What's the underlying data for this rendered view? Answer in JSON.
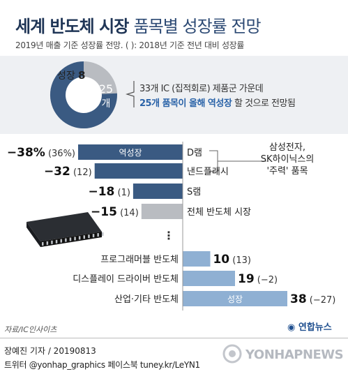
{
  "header": {
    "title_bold": "세계 반도체 시장",
    "title_light": "품목별 성장률 전망",
    "subtitle": "2019년 매출 기준 성장률 전망. (   ): 2018년 기준 전년 대비 성장률"
  },
  "donut": {
    "total_label": "33개 IC (집적회로) 제품군 가운데",
    "highlight": "25개 품목이 올해 역성장",
    "tail": " 할 것으로 전망됨",
    "decline_count": "25",
    "decline_unit": "개",
    "growth_label": "성장",
    "growth_count": "8"
  },
  "annotation": {
    "line1": "삼성전자,",
    "line2": "SK하이닉스의",
    "line3": "'주력' 품목"
  },
  "chart_data": {
    "type": "bar",
    "categories": [
      "D램",
      "낸드플래시",
      "S램",
      "전체 반도체 시장",
      "프로그래머블 반도체",
      "디스플레이 드라이버 반도체",
      "산업·기타 반도체"
    ],
    "series": [
      {
        "values": [
          -38,
          -32,
          -18,
          -15,
          10,
          19,
          38
        ]
      }
    ],
    "value_labels": [
      "−38%",
      "−32",
      "−18",
      "−15",
      "10",
      "19",
      "38"
    ],
    "prev_labels": [
      "(36%)",
      "(12)",
      "(1)",
      "(14)",
      "(13)",
      "(−2)",
      "(−27)"
    ],
    "bar_tags": {
      "0": "역성장",
      "6": "성장"
    },
    "ellipsis": "⋮",
    "colors": {
      "decline": "#3a5a82",
      "total": "#b9bcc1",
      "growth": "#8fb0d3",
      "donut_main": "#3a5a82",
      "donut_small": "#b9bcc1"
    }
  },
  "footer": {
    "source": "자료/IC인사이츠",
    "logo": "연합뉴스",
    "byline": "장예진 기자 / 20190813",
    "social": "트위터 @yonhap_graphics  페이스북 tuney.kr/LeYN1",
    "watermark": "YONHAPNEWS"
  }
}
